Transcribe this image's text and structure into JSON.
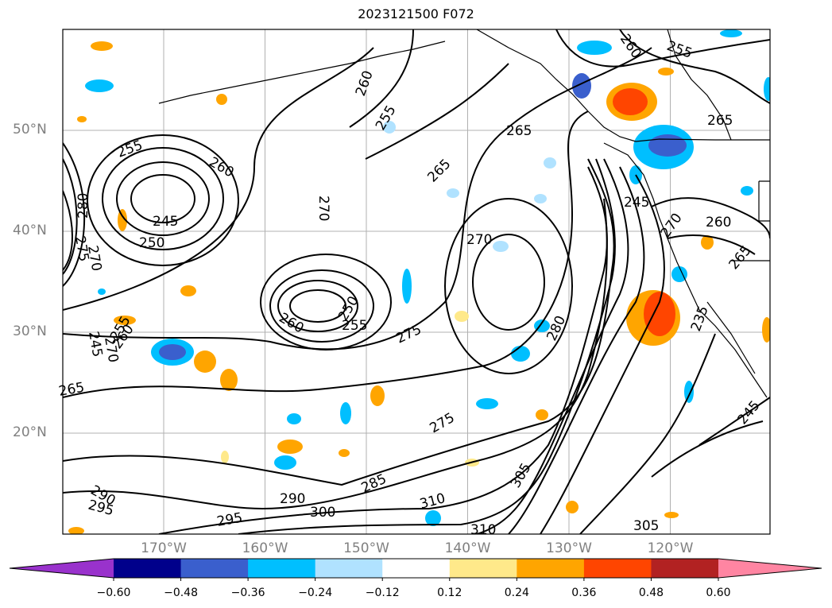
{
  "title": "2023121500 F072",
  "map": {
    "lat_labels": [
      {
        "text": "50°N",
        "lat": 50
      },
      {
        "text": "40°N",
        "lat": 40
      },
      {
        "text": "30°N",
        "lat": 30
      },
      {
        "text": "20°N",
        "lat": 20
      }
    ],
    "lon_labels": [
      {
        "text": "170°W",
        "lon": -170
      },
      {
        "text": "160°W",
        "lon": -160
      },
      {
        "text": "150°W",
        "lon": -150
      },
      {
        "text": "140°W",
        "lon": -140
      },
      {
        "text": "130°W",
        "lon": -130
      },
      {
        "text": "120°W",
        "lon": -120
      }
    ],
    "contour_labels": [
      "255",
      "260",
      "245",
      "250",
      "280",
      "275",
      "270",
      "270",
      "260",
      "255",
      "265",
      "265",
      "260",
      "255",
      "270",
      "275",
      "250",
      "255",
      "260",
      "265",
      "245",
      "270",
      "280",
      "275",
      "285",
      "290",
      "295",
      "290",
      "295",
      "300",
      "310",
      "310",
      "305",
      "305",
      "245",
      "260",
      "265",
      "255",
      "260",
      "270",
      "235",
      "245",
      "265"
    ],
    "grid": true
  },
  "colorbar": {
    "ticks": [
      "−0.60",
      "−0.48",
      "−0.36",
      "−0.24",
      "−0.12",
      "0.12",
      "0.24",
      "0.36",
      "0.48",
      "0.60"
    ],
    "colors": [
      "#9932cc",
      "#00008b",
      "#3a5fcd",
      "#00bfff",
      "#b0e2ff",
      "#ffffff",
      "#ffe98a",
      "#ffa500",
      "#ff4500",
      "#b22222",
      "#ff85a2"
    ]
  }
}
